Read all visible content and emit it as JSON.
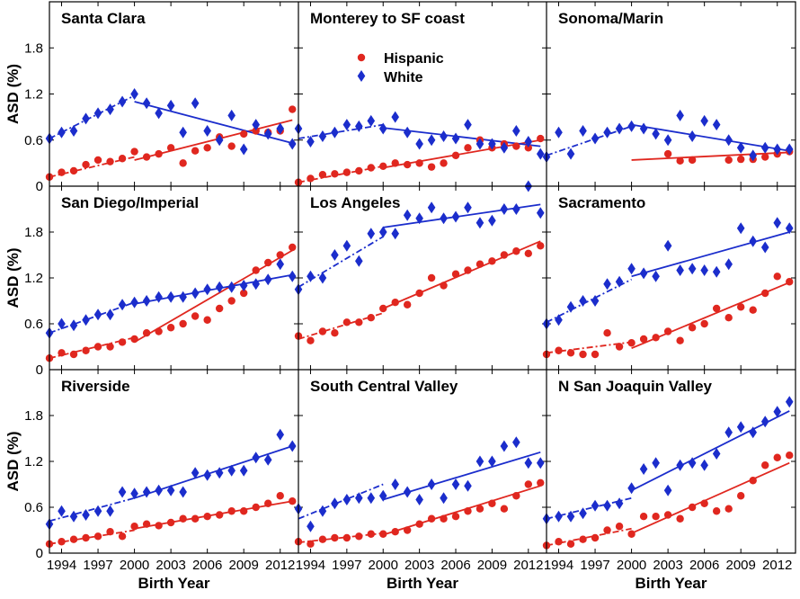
{
  "chart_data": {
    "type": "scatter",
    "layout": "3x3 small multiples",
    "xlabel": "Birth Year",
    "ylabel": "ASD (%)",
    "xlim": [
      1993,
      2013.5
    ],
    "ylim": [
      0,
      2.4
    ],
    "xticks": [
      1994,
      1997,
      2000,
      2003,
      2006,
      2009,
      2012
    ],
    "yticks": [
      0,
      0.6,
      1.2,
      1.8
    ],
    "ytick_labels": [
      "0",
      "0.6",
      "1.2",
      "1.8"
    ],
    "legend": {
      "position": "top-center of Monterey to SF coast panel",
      "entries": [
        "Hispanic",
        "White"
      ]
    },
    "series_styles": {
      "Hispanic": {
        "color": "#e0271f",
        "marker": "circle"
      },
      "White": {
        "color": "#1b2dcc",
        "marker": "diamond"
      }
    },
    "fit_style": "dash-dot line 1993–2000, solid line 2000–2013",
    "x": [
      1993,
      1994,
      1995,
      1996,
      1997,
      1998,
      1999,
      2000,
      2001,
      2002,
      2003,
      2004,
      2005,
      2006,
      2007,
      2008,
      2009,
      2010,
      2011,
      2012,
      2013
    ],
    "panels": [
      {
        "title": "Santa Clara",
        "series": [
          {
            "name": "Hispanic",
            "values": [
              0.12,
              0.18,
              0.2,
              0.28,
              0.34,
              0.32,
              0.36,
              0.45,
              0.38,
              0.42,
              0.5,
              0.3,
              0.46,
              0.5,
              0.64,
              0.52,
              0.68,
              0.72,
              0.7,
              0.72,
              1.0
            ]
          },
          {
            "name": "White",
            "values": [
              0.62,
              0.7,
              0.72,
              0.88,
              0.95,
              1.0,
              1.1,
              1.2,
              1.08,
              0.95,
              1.05,
              0.7,
              1.08,
              0.72,
              0.6,
              0.92,
              0.48,
              0.8,
              0.68,
              0.75,
              0.55
            ]
          }
        ],
        "fits": [
          {
            "name": "Hispanic",
            "segment": "1993-2000",
            "y_start": 0.12,
            "y_end": 0.38
          },
          {
            "name": "Hispanic",
            "segment": "2000-2013",
            "y_start": 0.34,
            "y_end": 0.86
          },
          {
            "name": "White",
            "segment": "1993-2000",
            "y_start": 0.62,
            "y_end": 1.18
          },
          {
            "name": "White",
            "segment": "2000-2013",
            "y_start": 1.1,
            "y_end": 0.56
          }
        ]
      },
      {
        "title": "Monterey to SF coast",
        "series": [
          {
            "name": "Hispanic",
            "values": [
              0.05,
              0.1,
              0.15,
              0.16,
              0.18,
              0.2,
              0.24,
              0.26,
              0.3,
              0.28,
              0.3,
              0.25,
              0.3,
              0.4,
              0.5,
              0.6,
              0.5,
              0.55,
              0.52,
              0.5,
              0.62
            ]
          },
          {
            "name": "White",
            "values": [
              0.75,
              0.58,
              0.65,
              0.7,
              0.8,
              0.78,
              0.85,
              0.75,
              0.9,
              0.7,
              0.55,
              0.6,
              0.65,
              0.62,
              0.8,
              0.55,
              0.55,
              0.5,
              0.72,
              0.58,
              0.42
            ]
          }
        ],
        "fits": [
          {
            "name": "Hispanic",
            "segment": "1993-2000",
            "y_start": 0.05,
            "y_end": 0.26
          },
          {
            "name": "Hispanic",
            "segment": "2000-2013",
            "y_start": 0.24,
            "y_end": 0.6
          },
          {
            "name": "White",
            "segment": "1993-2000",
            "y_start": 0.62,
            "y_end": 0.8
          },
          {
            "name": "White",
            "segment": "2000-2013",
            "y_start": 0.76,
            "y_end": 0.52
          }
        ]
      },
      {
        "title": "Sonoma/Marin",
        "series": [
          {
            "name": "Hispanic",
            "values": [
              null,
              null,
              null,
              null,
              null,
              null,
              null,
              null,
              null,
              null,
              0.42,
              0.33,
              0.34,
              null,
              null,
              0.34,
              0.35,
              0.35,
              0.38,
              0.42,
              0.45
            ]
          },
          {
            "name": "White",
            "values": [
              0.38,
              0.7,
              0.42,
              0.72,
              0.62,
              0.7,
              0.75,
              0.78,
              0.75,
              0.68,
              0.6,
              0.92,
              0.65,
              0.85,
              0.8,
              0.6,
              0.5,
              0.4,
              0.5,
              0.48,
              0.48
            ]
          }
        ],
        "fits": [
          {
            "name": "Hispanic",
            "segment": "2000-2013",
            "y_start": 0.34,
            "y_end": 0.44
          },
          {
            "name": "White",
            "segment": "1993-2000",
            "y_start": 0.4,
            "y_end": 0.78
          },
          {
            "name": "White",
            "segment": "2000-2013",
            "y_start": 0.8,
            "y_end": 0.46
          }
        ]
      },
      {
        "title": "San Diego/Imperial",
        "series": [
          {
            "name": "Hispanic",
            "values": [
              0.15,
              0.22,
              0.2,
              0.25,
              0.3,
              0.3,
              0.36,
              0.4,
              0.48,
              0.5,
              0.55,
              0.6,
              0.7,
              0.65,
              0.8,
              0.9,
              1.0,
              1.3,
              1.4,
              1.5,
              1.6
            ]
          },
          {
            "name": "White",
            "values": [
              0.48,
              0.6,
              0.58,
              0.65,
              0.72,
              0.72,
              0.85,
              0.88,
              0.9,
              0.95,
              0.95,
              0.95,
              1.0,
              1.05,
              1.08,
              1.08,
              1.1,
              1.12,
              1.18,
              1.38,
              1.22
            ]
          }
        ],
        "fits": [
          {
            "name": "Hispanic",
            "segment": "1993-2000",
            "y_start": 0.15,
            "y_end": 0.42
          },
          {
            "name": "Hispanic",
            "segment": "2000-2013",
            "y_start": 0.36,
            "y_end": 1.56
          },
          {
            "name": "White",
            "segment": "1993-2000",
            "y_start": 0.48,
            "y_end": 0.88
          },
          {
            "name": "White",
            "segment": "2000-2013",
            "y_start": 0.86,
            "y_end": 1.24
          }
        ]
      },
      {
        "title": "Los Angeles",
        "series": [
          {
            "name": "Hispanic",
            "values": [
              0.44,
              0.38,
              0.5,
              0.48,
              0.62,
              0.62,
              0.68,
              0.8,
              0.88,
              0.85,
              1.0,
              1.2,
              1.1,
              1.25,
              1.3,
              1.38,
              1.42,
              1.5,
              1.55,
              1.52,
              1.62
            ]
          },
          {
            "name": "White",
            "values": [
              1.05,
              1.22,
              1.2,
              1.5,
              1.62,
              1.42,
              1.78,
              1.8,
              1.78,
              2.02,
              1.98,
              2.12,
              1.98,
              2.0,
              2.12,
              1.92,
              1.95,
              2.1,
              2.1,
              2.4,
              2.05
            ]
          }
        ],
        "fits": [
          {
            "name": "Hispanic",
            "segment": "1993-2000",
            "y_start": 0.4,
            "y_end": 0.74
          },
          {
            "name": "Hispanic",
            "segment": "2000-2013",
            "y_start": 0.8,
            "y_end": 1.68
          },
          {
            "name": "White",
            "segment": "1993-2000",
            "y_start": 1.08,
            "y_end": 1.74
          },
          {
            "name": "White",
            "segment": "2000-2013",
            "y_start": 1.86,
            "y_end": 2.16
          }
        ]
      },
      {
        "title": "Sacramento",
        "series": [
          {
            "name": "Hispanic",
            "values": [
              0.2,
              0.25,
              0.22,
              0.2,
              0.2,
              0.48,
              0.3,
              0.35,
              0.4,
              0.42,
              0.5,
              0.38,
              0.55,
              0.6,
              0.8,
              0.68,
              0.82,
              0.78,
              1.0,
              1.22,
              1.15
            ]
          },
          {
            "name": "White",
            "values": [
              0.6,
              0.65,
              0.82,
              0.9,
              0.9,
              1.12,
              1.15,
              1.32,
              1.26,
              1.22,
              1.62,
              1.3,
              1.32,
              1.3,
              1.28,
              1.38,
              1.85,
              1.68,
              1.6,
              1.92,
              1.85
            ]
          }
        ],
        "fits": [
          {
            "name": "Hispanic",
            "segment": "1993-2000",
            "y_start": 0.22,
            "y_end": 0.36
          },
          {
            "name": "Hispanic",
            "segment": "2000-2013",
            "y_start": 0.28,
            "y_end": 1.14
          },
          {
            "name": "White",
            "segment": "1993-2000",
            "y_start": 0.62,
            "y_end": 1.18
          },
          {
            "name": "White",
            "segment": "2000-2013",
            "y_start": 1.22,
            "y_end": 1.8
          }
        ]
      },
      {
        "title": "Riverside",
        "series": [
          {
            "name": "Hispanic",
            "values": [
              0.12,
              0.15,
              0.18,
              0.2,
              0.22,
              0.28,
              0.22,
              0.35,
              0.38,
              0.36,
              0.4,
              0.45,
              0.45,
              0.48,
              0.5,
              0.55,
              0.55,
              0.6,
              0.65,
              0.75,
              0.68
            ]
          },
          {
            "name": "White",
            "values": [
              0.38,
              0.55,
              0.48,
              0.5,
              0.55,
              0.55,
              0.8,
              0.78,
              0.8,
              0.82,
              0.82,
              0.8,
              1.05,
              1.02,
              1.05,
              1.08,
              1.08,
              1.25,
              1.22,
              1.55,
              1.4
            ]
          }
        ],
        "fits": [
          {
            "name": "Hispanic",
            "segment": "1993-2000",
            "y_start": 0.12,
            "y_end": 0.3
          },
          {
            "name": "Hispanic",
            "segment": "2000-2013",
            "y_start": 0.32,
            "y_end": 0.68
          },
          {
            "name": "White",
            "segment": "1993-2000",
            "y_start": 0.42,
            "y_end": 0.72
          },
          {
            "name": "White",
            "segment": "2000-2013",
            "y_start": 0.72,
            "y_end": 1.4
          }
        ]
      },
      {
        "title": "South Central Valley",
        "series": [
          {
            "name": "Hispanic",
            "values": [
              0.15,
              0.12,
              0.18,
              0.2,
              0.2,
              0.22,
              0.25,
              0.25,
              0.28,
              0.3,
              0.38,
              0.45,
              0.45,
              0.48,
              0.55,
              0.58,
              0.65,
              0.58,
              0.75,
              0.9,
              0.92
            ]
          },
          {
            "name": "White",
            "values": [
              0.58,
              0.35,
              0.55,
              0.65,
              0.7,
              0.72,
              0.72,
              0.75,
              0.9,
              0.8,
              0.7,
              0.9,
              0.72,
              0.9,
              0.88,
              1.2,
              1.2,
              1.4,
              1.45,
              1.18,
              1.18
            ]
          }
        ],
        "fits": [
          {
            "name": "Hispanic",
            "segment": "1993-2000",
            "y_start": 0.14,
            "y_end": 0.26
          },
          {
            "name": "Hispanic",
            "segment": "2000-2013",
            "y_start": 0.24,
            "y_end": 0.88
          },
          {
            "name": "White",
            "segment": "1993-2000",
            "y_start": 0.45,
            "y_end": 0.9
          },
          {
            "name": "White",
            "segment": "2000-2013",
            "y_start": 0.7,
            "y_end": 1.32
          }
        ]
      },
      {
        "title": "N San Joaquin Valley",
        "series": [
          {
            "name": "Hispanic",
            "values": [
              0.1,
              0.15,
              0.12,
              0.18,
              0.2,
              0.3,
              0.35,
              0.25,
              0.48,
              0.48,
              0.5,
              0.45,
              0.6,
              0.65,
              0.55,
              0.58,
              0.75,
              0.95,
              1.15,
              1.25,
              1.28
            ]
          },
          {
            "name": "White",
            "values": [
              0.45,
              0.48,
              0.48,
              0.52,
              0.62,
              0.62,
              0.65,
              0.85,
              1.1,
              1.18,
              0.82,
              1.15,
              1.18,
              1.15,
              1.3,
              1.58,
              1.65,
              1.58,
              1.72,
              1.85,
              1.98
            ]
          }
        ],
        "fits": [
          {
            "name": "Hispanic",
            "segment": "1993-2000",
            "y_start": 0.1,
            "y_end": 0.32
          },
          {
            "name": "Hispanic",
            "segment": "2000-2013",
            "y_start": 0.26,
            "y_end": 1.18
          },
          {
            "name": "White",
            "segment": "1993-2000",
            "y_start": 0.45,
            "y_end": 0.72
          },
          {
            "name": "White",
            "segment": "2000-2013",
            "y_start": 0.82,
            "y_end": 1.86
          }
        ]
      }
    ]
  }
}
